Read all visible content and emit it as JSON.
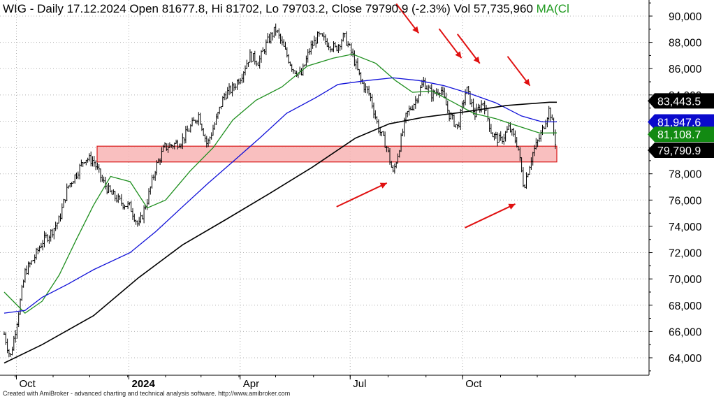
{
  "header": {
    "text": "WIG - Daily 17.12.2024 Open 81677.8, Hi 81702, Lo 79703.2, Close 79790.9 (-2.3%) Vol 57,735,960",
    "ma_label": "MA(Cl"
  },
  "footer": "Created with AmiBroker - advanced charting and technical analysis software. http://www.amibroker.com",
  "colors": {
    "ma_short": "#1f8f1f",
    "ma_mid": "#1010d8",
    "ma_long": "#000000",
    "zone_fill": "#f8b4b4",
    "zone_border": "#d81818",
    "arrows": "#e01010",
    "grid": "#b0b0b0"
  },
  "chart_data": {
    "type": "line",
    "title": "WIG - Daily",
    "ylim": [
      62600,
      91300
    ],
    "y_ticks": [
      "64,000",
      "66,000",
      "68,000",
      "70,000",
      "72,000",
      "74,000",
      "76,000",
      "78,000",
      "80,000",
      "82,000",
      "84,000",
      "86,000",
      "88,000",
      "90,000"
    ],
    "y_tick_values": [
      64000,
      66000,
      68000,
      70000,
      72000,
      74000,
      76000,
      78000,
      80000,
      82000,
      84000,
      86000,
      88000,
      90000
    ],
    "x_ticks": [
      {
        "label": "Oct",
        "date": "2023-10-02",
        "bold": false
      },
      {
        "label": "2024",
        "date": "2024-01-02",
        "bold": true
      },
      {
        "label": "Apr",
        "date": "2024-04-02",
        "bold": false
      },
      {
        "label": "Jul",
        "date": "2024-07-01",
        "bold": false
      },
      {
        "label": "Oct",
        "date": "2024-10-01",
        "bold": false
      }
    ],
    "grid": true,
    "series": [
      {
        "name": "WIG",
        "style": "ohlc",
        "x": [
          "2023-09-22",
          "2023-09-27",
          "2023-10-02",
          "2023-10-09",
          "2023-10-16",
          "2023-10-23",
          "2023-10-30",
          "2023-11-06",
          "2023-11-13",
          "2023-11-20",
          "2023-11-27",
          "2023-12-04",
          "2023-12-11",
          "2023-12-18",
          "2023-12-27",
          "2024-01-03",
          "2024-01-10",
          "2024-01-17",
          "2024-01-24",
          "2024-01-31",
          "2024-02-07",
          "2024-02-14",
          "2024-02-21",
          "2024-02-28",
          "2024-03-06",
          "2024-03-13",
          "2024-03-20",
          "2024-03-27",
          "2024-04-03",
          "2024-04-10",
          "2024-04-17",
          "2024-04-24",
          "2024-05-01",
          "2024-05-08",
          "2024-05-15",
          "2024-05-22",
          "2024-05-29",
          "2024-06-05",
          "2024-06-12",
          "2024-06-19",
          "2024-06-26",
          "2024-07-03",
          "2024-07-10",
          "2024-07-17",
          "2024-07-24",
          "2024-07-31",
          "2024-08-05",
          "2024-08-09",
          "2024-08-16",
          "2024-08-23",
          "2024-08-30",
          "2024-09-06",
          "2024-09-13",
          "2024-09-20",
          "2024-09-27",
          "2024-10-04",
          "2024-10-11",
          "2024-10-18",
          "2024-10-25",
          "2024-11-01",
          "2024-11-08",
          "2024-11-15",
          "2024-11-20",
          "2024-11-27",
          "2024-12-04",
          "2024-12-11",
          "2024-12-17"
        ],
        "values": [
          65800,
          64000,
          66500,
          70500,
          71500,
          72800,
          73500,
          74500,
          77000,
          78000,
          79200,
          79000,
          77500,
          76500,
          75800,
          75500,
          74000,
          76000,
          78500,
          80000,
          80200,
          80500,
          81500,
          82500,
          80200,
          82000,
          84000,
          84500,
          85500,
          87000,
          86500,
          88000,
          89000,
          87500,
          86000,
          85500,
          87500,
          88500,
          88000,
          87500,
          88500,
          87000,
          85000,
          84000,
          81500,
          80000,
          78000,
          79500,
          82500,
          83500,
          85000,
          84000,
          84500,
          82500,
          81500,
          84500,
          82500,
          83500,
          81000,
          80500,
          81500,
          80200,
          77000,
          79500,
          81000,
          83000,
          79790
        ]
      },
      {
        "name": "MA short",
        "x": [
          "2023-09-22",
          "2023-10-09",
          "2023-10-23",
          "2023-11-06",
          "2023-11-20",
          "2023-12-04",
          "2023-12-18",
          "2024-01-03",
          "2024-01-17",
          "2024-02-01",
          "2024-02-21",
          "2024-03-11",
          "2024-03-27",
          "2024-04-15",
          "2024-05-06",
          "2024-05-27",
          "2024-06-17",
          "2024-07-03",
          "2024-07-22",
          "2024-08-07",
          "2024-08-21",
          "2024-09-06",
          "2024-09-24",
          "2024-10-10",
          "2024-10-28",
          "2024-11-13",
          "2024-12-03",
          "2024-12-17"
        ],
        "values": [
          69000,
          67400,
          68300,
          70300,
          73000,
          75600,
          77800,
          77400,
          75400,
          76000,
          78200,
          80000,
          82100,
          83600,
          84600,
          86200,
          86800,
          87100,
          86400,
          85100,
          84200,
          84300,
          83400,
          82600,
          82200,
          81700,
          81100,
          81108.7
        ]
      },
      {
        "name": "MA mid",
        "x": [
          "2023-09-22",
          "2023-10-09",
          "2023-10-23",
          "2023-11-13",
          "2023-12-04",
          "2024-01-03",
          "2024-01-24",
          "2024-02-15",
          "2024-03-07",
          "2024-03-28",
          "2024-04-19",
          "2024-05-10",
          "2024-06-03",
          "2024-06-21",
          "2024-07-15",
          "2024-08-05",
          "2024-08-26",
          "2024-09-16",
          "2024-10-07",
          "2024-10-28",
          "2024-11-18",
          "2024-12-05",
          "2024-12-17"
        ],
        "values": [
          67400,
          67600,
          68600,
          69600,
          70700,
          72000,
          73600,
          75500,
          77300,
          79000,
          80800,
          82600,
          83800,
          84800,
          85100,
          85300,
          85100,
          84700,
          84100,
          83400,
          82400,
          81950,
          81947.6
        ]
      },
      {
        "name": "MA long",
        "x": [
          "2023-09-22",
          "2023-10-23",
          "2023-12-04",
          "2024-01-10",
          "2024-02-15",
          "2024-03-21",
          "2024-04-26",
          "2024-05-31",
          "2024-07-05",
          "2024-08-02",
          "2024-08-30",
          "2024-10-02",
          "2024-11-06",
          "2024-12-11",
          "2024-12-17"
        ],
        "values": [
          63600,
          65000,
          67200,
          70100,
          72600,
          74500,
          76500,
          78500,
          80700,
          81800,
          82300,
          82700,
          83200,
          83443.5,
          83443.5
        ]
      }
    ],
    "zone": {
      "y_low": 78900,
      "y_high": 80100,
      "x_start": "2023-11-30",
      "x_end": "2024-12-17"
    },
    "price_tags": [
      {
        "label": "83,443.5",
        "value": 83443.5,
        "color": "#000000"
      },
      {
        "label": "81,947.6",
        "value": 81947.6,
        "color": "#0a0acc"
      },
      {
        "label": "81,108.7",
        "value": 81108.7,
        "color": "#128a12"
      },
      {
        "label": "79,790.9",
        "value": 79790.9,
        "color": "#000000"
      }
    ],
    "arrows": [
      {
        "direction": "down",
        "date": "2024-08-26",
        "value": 88700
      },
      {
        "direction": "down",
        "date": "2024-09-30",
        "value": 86800
      },
      {
        "direction": "down",
        "date": "2024-10-15",
        "value": 86400
      },
      {
        "direction": "down",
        "date": "2024-11-25",
        "value": 84700
      },
      {
        "direction": "up",
        "date": "2024-07-31",
        "value": 77300
      },
      {
        "direction": "up",
        "date": "2024-11-13",
        "value": 75700
      }
    ]
  }
}
